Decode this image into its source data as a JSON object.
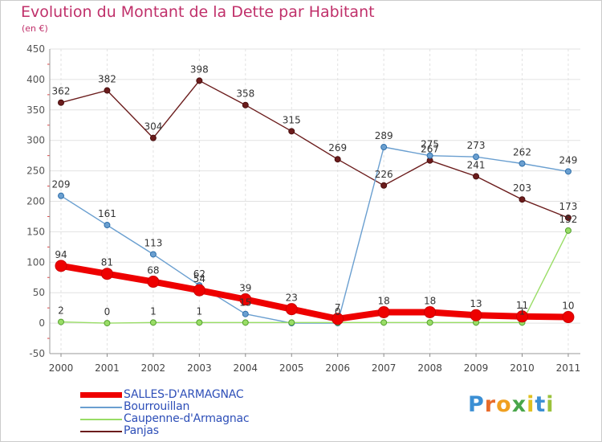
{
  "title": "Evolution du Montant de la Dette par Habitant",
  "unit_label": "(en €)",
  "brand": {
    "letters": [
      "P",
      "r",
      "o",
      "x",
      "i",
      "t",
      "i"
    ],
    "colors": [
      "#3b8fd4",
      "#e86b2a",
      "#f0a020",
      "#49a64a",
      "#e0c020",
      "#3b8fd4",
      "#9ac23c"
    ]
  },
  "chart_data": {
    "type": "line",
    "x": [
      "2000",
      "2001",
      "2002",
      "2003",
      "2004",
      "2005",
      "2006",
      "2007",
      "2008",
      "2009",
      "2010",
      "2011"
    ],
    "ylim": [
      -50,
      450
    ],
    "yticks": [
      "-50",
      "0",
      "50",
      "100",
      "150",
      "200",
      "250",
      "300",
      "350",
      "400",
      "450"
    ],
    "grid": true,
    "legend_position": "bottom-left",
    "series": [
      {
        "name": "SALLES-D'ARMAGNAC",
        "color": "#ee0000",
        "values": [
          94,
          81,
          68,
          54,
          39,
          23,
          7,
          18,
          18,
          13,
          11,
          10
        ],
        "labels": [
          "94",
          "81",
          "68",
          "54",
          "39",
          "23",
          "7",
          "18",
          "18",
          "13",
          "11",
          "10"
        ]
      },
      {
        "name": "Bourrouillan",
        "color": "#6a9fd0",
        "values": [
          209,
          161,
          113,
          62,
          15,
          0,
          0,
          289,
          275,
          273,
          262,
          249
        ],
        "labels": [
          "209",
          "161",
          "113",
          "62",
          "15",
          "",
          "0",
          "289",
          "275",
          "273",
          "262",
          "249"
        ]
      },
      {
        "name": "Caupenne-d'Armagnac",
        "color": "#99dd66",
        "values": [
          2,
          0,
          1,
          1,
          1,
          1,
          1,
          1,
          1,
          1,
          1,
          152
        ],
        "labels": [
          "2",
          "0",
          "1",
          "1",
          "",
          "",
          "",
          "",
          "",
          "",
          "1",
          "152"
        ]
      },
      {
        "name": "Panjas",
        "color": "#6b1c1c",
        "values": [
          362,
          382,
          304,
          398,
          358,
          315,
          269,
          226,
          267,
          241,
          203,
          173
        ],
        "labels": [
          "362",
          "382",
          "304",
          "398",
          "358",
          "315",
          "269",
          "226",
          "267",
          "241",
          "203",
          "173"
        ]
      }
    ]
  }
}
